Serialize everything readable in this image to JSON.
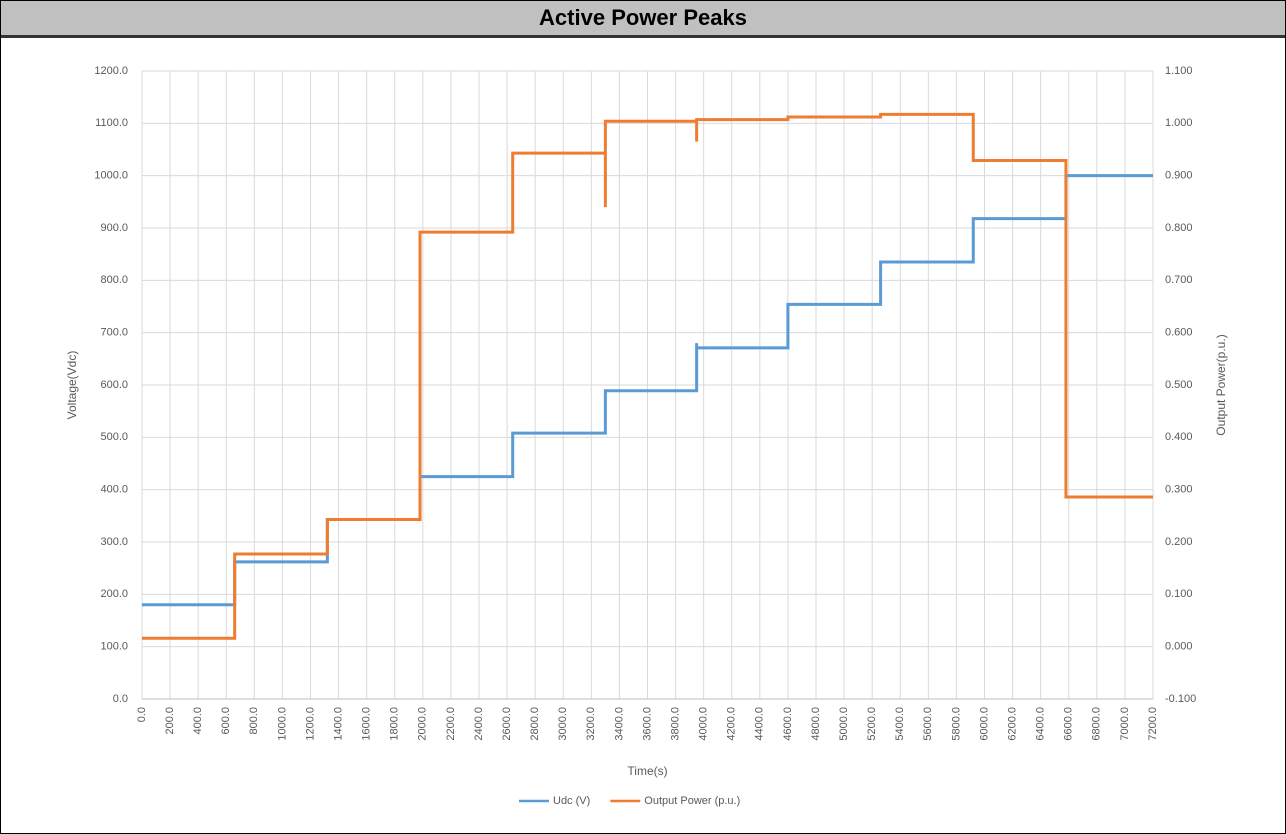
{
  "chart_data": {
    "type": "line",
    "title": "Active Power Peaks",
    "x_label": "Time(s)",
    "y_label": "Voltage(Vdc)",
    "y2_label": "Output Power(p.u.)",
    "xlim": [
      0,
      7200
    ],
    "ylim": [
      0,
      1200
    ],
    "y2lim": [
      -0.1,
      1.1
    ],
    "grid": true,
    "legend": "bottom",
    "xticks": [
      {
        "value": 0,
        "label": "0.0"
      },
      {
        "value": 200,
        "label": "200.0"
      },
      {
        "value": 400,
        "label": "400.0"
      },
      {
        "value": 600,
        "label": "600.0"
      },
      {
        "value": 800,
        "label": "800.0"
      },
      {
        "value": 1000,
        "label": "1000.0"
      },
      {
        "value": 1200,
        "label": "1200.0"
      },
      {
        "value": 1400,
        "label": "1400.0"
      },
      {
        "value": 1600,
        "label": "1600.0"
      },
      {
        "value": 1800,
        "label": "1800.0"
      },
      {
        "value": 2000,
        "label": "2000.0"
      },
      {
        "value": 2200,
        "label": "2200.0"
      },
      {
        "value": 2400,
        "label": "2400.0"
      },
      {
        "value": 2600,
        "label": "2600.0"
      },
      {
        "value": 2800,
        "label": "2800.0"
      },
      {
        "value": 3000,
        "label": "3000.0"
      },
      {
        "value": 3200,
        "label": "3200.0"
      },
      {
        "value": 3400,
        "label": "3400.0"
      },
      {
        "value": 3600,
        "label": "3600.0"
      },
      {
        "value": 3800,
        "label": "3800.0"
      },
      {
        "value": 4000,
        "label": "4000.0"
      },
      {
        "value": 4200,
        "label": "4200.0"
      },
      {
        "value": 4400,
        "label": "4400.0"
      },
      {
        "value": 4600,
        "label": "4600.0"
      },
      {
        "value": 4800,
        "label": "4800.0"
      },
      {
        "value": 5000,
        "label": "5000.0"
      },
      {
        "value": 5200,
        "label": "5200.0"
      },
      {
        "value": 5400,
        "label": "5400.0"
      },
      {
        "value": 5600,
        "label": "5600.0"
      },
      {
        "value": 5800,
        "label": "5800.0"
      },
      {
        "value": 6000,
        "label": "6000.0"
      },
      {
        "value": 6200,
        "label": "6200.0"
      },
      {
        "value": 6400,
        "label": "6400.0"
      },
      {
        "value": 6600,
        "label": "6600.0"
      },
      {
        "value": 6800,
        "label": "6800.0"
      },
      {
        "value": 7000,
        "label": "7000.0"
      },
      {
        "value": 7200,
        "label": "7200.0"
      }
    ],
    "yticks": [
      {
        "value": 0,
        "label": "0.0"
      },
      {
        "value": 100,
        "label": "100.0"
      },
      {
        "value": 200,
        "label": "200.0"
      },
      {
        "value": 300,
        "label": "300.0"
      },
      {
        "value": 400,
        "label": "400.0"
      },
      {
        "value": 500,
        "label": "500.0"
      },
      {
        "value": 600,
        "label": "600.0"
      },
      {
        "value": 700,
        "label": "700.0"
      },
      {
        "value": 800,
        "label": "800.0"
      },
      {
        "value": 900,
        "label": "900.0"
      },
      {
        "value": 1000,
        "label": "1000.0"
      },
      {
        "value": 1100,
        "label": "1100.0"
      },
      {
        "value": 1200,
        "label": "1200.0"
      }
    ],
    "y2ticks": [
      {
        "value": -0.1,
        "label": "-0.100"
      },
      {
        "value": 0,
        "label": "0.000"
      },
      {
        "value": 0.1,
        "label": "0.100"
      },
      {
        "value": 0.2,
        "label": "0.200"
      },
      {
        "value": 0.3,
        "label": "0.300"
      },
      {
        "value": 0.4,
        "label": "0.400"
      },
      {
        "value": 0.5,
        "label": "0.500"
      },
      {
        "value": 0.6,
        "label": "0.600"
      },
      {
        "value": 0.7,
        "label": "0.700"
      },
      {
        "value": 0.8,
        "label": "0.800"
      },
      {
        "value": 0.9,
        "label": "0.900"
      },
      {
        "value": 1.0,
        "label": "1.000"
      },
      {
        "value": 1.1,
        "label": "1.100"
      }
    ],
    "series": [
      {
        "name": "Udc (V)",
        "color": "#5b9bd5",
        "x": [
          0,
          660,
          660,
          1320,
          1320,
          1980,
          1980,
          2640,
          2640,
          3300,
          3300,
          3950,
          3950,
          3950,
          4600,
          4600,
          5260,
          5260,
          5920,
          5920,
          6580,
          6580,
          7200
        ],
        "values": [
          180,
          180,
          262,
          262,
          343,
          343,
          425,
          425,
          508,
          508,
          589,
          589,
          680,
          671,
          671,
          754,
          754,
          835,
          835,
          918,
          918,
          1000,
          1000
        ]
      },
      {
        "name": "Output Power (p.u.)",
        "color": "#ed7d31",
        "axis": "y2",
        "x": [
          0,
          660,
          660,
          1320,
          1320,
          1980,
          1980,
          2640,
          2640,
          3300,
          3300,
          3300,
          3950,
          3950,
          3950,
          4600,
          4600,
          5260,
          5260,
          5920,
          5920,
          6580,
          6580,
          7200
        ],
        "values": [
          0.016,
          0.016,
          0.177,
          0.177,
          0.243,
          0.243,
          0.792,
          0.792,
          0.943,
          0.943,
          0.84,
          1.004,
          1.004,
          0.965,
          1.007,
          1.007,
          1.012,
          1.012,
          1.017,
          1.017,
          0.929,
          0.929,
          0.286,
          0.286
        ]
      }
    ]
  }
}
